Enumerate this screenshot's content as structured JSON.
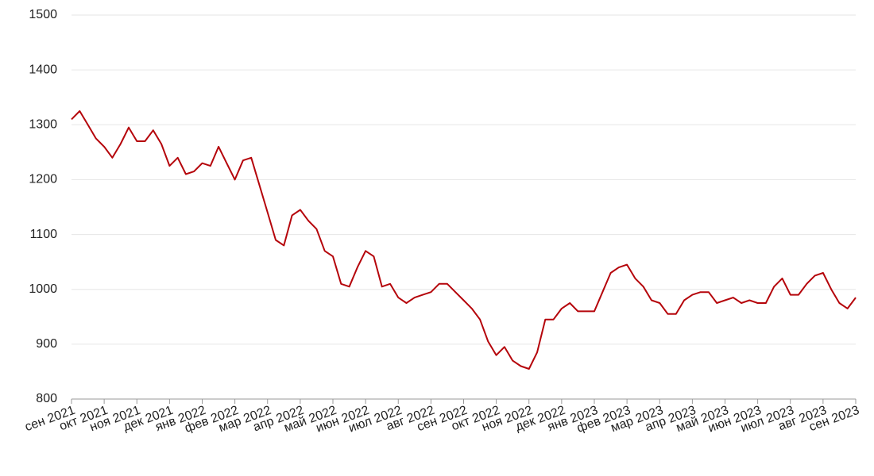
{
  "chart_data": {
    "type": "line",
    "categories": [
      "сен 2021",
      null,
      null,
      null,
      "окт 2021",
      null,
      null,
      null,
      "ноя 2021",
      null,
      null,
      null,
      "дек 2021",
      null,
      null,
      null,
      "янв 2022",
      null,
      null,
      null,
      "фев 2022",
      null,
      null,
      null,
      "мар 2022",
      null,
      null,
      null,
      "апр 2022",
      null,
      null,
      null,
      "май 2022",
      null,
      null,
      null,
      "июн 2022",
      null,
      null,
      null,
      "июл 2022",
      null,
      null,
      null,
      "авг 2022",
      null,
      null,
      null,
      "сен 2022",
      null,
      null,
      null,
      "окт 2022",
      null,
      null,
      null,
      "ноя 2022",
      null,
      null,
      null,
      "дек 2022",
      null,
      null,
      null,
      "янв 2023",
      null,
      null,
      null,
      "фев 2023",
      null,
      null,
      null,
      "мар 2023",
      null,
      null,
      null,
      "апр 2023",
      null,
      null,
      null,
      "май 2023",
      null,
      null,
      null,
      "июн 2023",
      null,
      null,
      null,
      "июл 2023",
      null,
      null,
      null,
      "авг 2023",
      null,
      null,
      null,
      "сен 2023"
    ],
    "values": [
      1310,
      1325,
      1300,
      1275,
      1260,
      1240,
      1265,
      1295,
      1270,
      1270,
      1290,
      1265,
      1225,
      1240,
      1210,
      1215,
      1230,
      1225,
      1260,
      1230,
      1200,
      1235,
      1240,
      1190,
      1140,
      1090,
      1080,
      1135,
      1145,
      1125,
      1110,
      1070,
      1060,
      1010,
      1005,
      1040,
      1070,
      1060,
      1005,
      1010,
      985,
      975,
      985,
      990,
      995,
      1010,
      1010,
      995,
      980,
      965,
      945,
      905,
      880,
      895,
      870,
      860,
      855,
      885,
      945,
      945,
      965,
      975,
      960,
      960,
      960,
      995,
      1030,
      1040,
      1045,
      1020,
      1005,
      980,
      975,
      955,
      955,
      980,
      990,
      995,
      995,
      975,
      980,
      985,
      975,
      980,
      975,
      975,
      1005,
      1020,
      990,
      990,
      1010,
      1025,
      1030,
      1000,
      975,
      965,
      985
    ],
    "color": "#b5050b",
    "ylim": [
      800,
      1500
    ],
    "yticks": [
      800,
      900,
      1000,
      1100,
      1200,
      1300,
      1400,
      1500
    ],
    "grid": true
  }
}
